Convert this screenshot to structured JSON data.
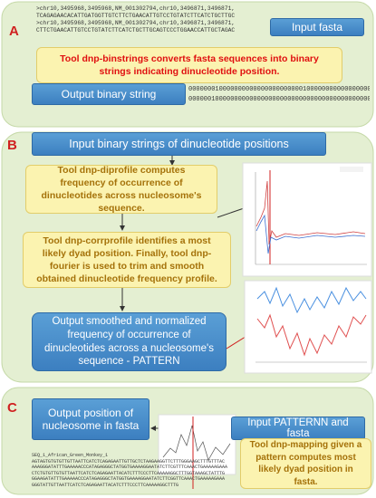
{
  "panel_a": {
    "label": "A",
    "fasta_lines": [
      ">chr10,3495968,3495968,NM_001302794,chr10,3496871,3496871,",
      "TCAGAGAACACATTGATGGTTGTCTTCTGAACATTGTCCTGTATCTTCATCTGCTTGC",
      ">chr10,3495968,3495968,NM_001302794,chr10,3496871,3496871,",
      "CTTCTGAACATTGTCCTGTATCTTCATCTGCTTGCAGTCCCTGGAACCATTGCTAGAC"
    ],
    "input": "Input fasta",
    "tool": "Tool dnp-binstrings converts fasta sequences into binary strings indicating dinucleotide position.",
    "output": "Output binary string",
    "binary_lines": [
      "00000001000000000000000000000010000000000000000000",
      "00000010000000000000000000000000000000000000000001"
    ]
  },
  "panel_b": {
    "label": "B",
    "input": "Input binary strings of dinucleotide positions",
    "tool_1": "Tool dnp-diprofile computes frequency of occurrence of dinucleotides across nucleosome's sequence.",
    "tool_2": "Tool dnp-corrprofile identifies a most likely dyad position. Finally, tool dnp-fourier is used to trim and smooth obtained dinucleotide frequency profile.",
    "output": "Output smoothed and normalized frequency of occurrence of dinucleotides across a nucleosome's sequence - PATTERN"
  },
  "panel_c": {
    "label": "C",
    "output": "Output position of nucleosome in fasta",
    "input": "Input PATTERNN and fasta",
    "tool": "Tool dnp-mapping given a pattern computes most likely dyad position in fasta.",
    "fasta_lines": [
      "SEQ_1_African_Green_Monkey_1",
      "AGTAGTGTGTGTTGTTAATTCATCTCAGAGAATTGTTGCTCTAAGAAGGTTCTTTGGGAAGCTTTGTTTAC",
      "AAAGGGATATTTGAAAAACCCATAGAGGGCTATGGTGAAAAGGAATATCTTCGTTTCAAACTGAAAAAGAAA",
      "CTCTGTGTTGTGTTAATTCATCTCAGAGAATTACATCTTTCCCTTCAAAAAGGCTTTGGTAAAGCTATTTG",
      "GGAAGATATTTGAAAAACCCATAGAGGGCTATGGTGAAAAGGAATATCTTCGGTTCAAACTGAAAAAGAAA",
      "GGGTATTGTTAATTCATCTCAGAGAATTACATCTTTCCCTTCAAAAAGGCTTTG"
    ]
  }
}
